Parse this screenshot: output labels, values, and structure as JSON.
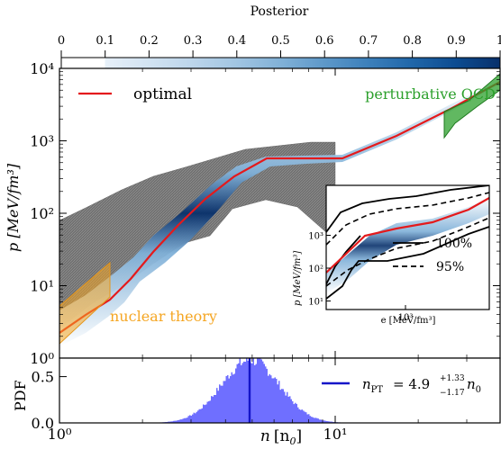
{
  "chart_data": [
    {
      "type": "colorbar",
      "title": "Posterior",
      "ticks": [
        "0",
        "0.1",
        "0.2",
        "0.3",
        "0.4",
        "0.5",
        "0.6",
        "0.7",
        "0.8",
        "0.9",
        "1"
      ],
      "range": [
        0,
        1
      ],
      "colors": [
        "#ffffff",
        "#e6eff8",
        "#d0e1f1",
        "#b9d2ea",
        "#9ec3e1",
        "#7fafd6",
        "#5b97c9",
        "#3b7fbb",
        "#1f65a8",
        "#0c4b8f",
        "#083068"
      ]
    },
    {
      "type": "area",
      "ylabel": "p [MeV/fm³]",
      "xlabel": "n [n₀]",
      "x_scale": "log",
      "y_scale": "log",
      "xlim": [
        1,
        40
      ],
      "ylim": [
        1,
        10000
      ],
      "x_ticks": [
        "10⁰",
        "10¹"
      ],
      "y_ticks": [
        "10⁰",
        "10¹",
        "10²",
        "10³",
        "10⁴"
      ],
      "legend": "top-left",
      "series": [
        {
          "name": "optimal",
          "color": "#e41a1c",
          "x": [
            1.0,
            1.5,
            1.8,
            2.5,
            3.5,
            4.9,
            10.0,
            20.0,
            40.0
          ],
          "y": [
            2.8,
            8.0,
            14.0,
            45.0,
            150.0,
            470.0,
            470.0,
            1400.0,
            3500.0
          ]
        },
        {
          "name": "perturbative QCD",
          "color": "#2ca02c",
          "x": [
            25.0,
            28.0,
            33.0,
            40.0
          ],
          "y": [
            1800.0,
            1200.0,
            1600.0,
            3600.0
          ]
        },
        {
          "name": "nuclear theory",
          "color": "#f5a623",
          "x": [
            1.0,
            1.5
          ],
          "y": [
            2.2,
            10.0
          ]
        },
        {
          "name": "100% envelope",
          "color": "#808080",
          "x": [
            1.0,
            2.0,
            4.0,
            8.0,
            10.0,
            40.0
          ],
          "y": [
            1.8,
            16.0,
            50.0,
            200.0,
            300.0,
            3500.0
          ]
        }
      ]
    },
    {
      "type": "line",
      "xlabel": "e [MeV/fm³]",
      "ylabel": "p [MeV/fm³]",
      "x_scale": "log",
      "y_scale": "log",
      "x_ticks": [
        "10³"
      ],
      "y_ticks": [
        "10⁰",
        "10¹",
        "10²",
        "10³"
      ],
      "legend": "bottom-right",
      "series": [
        {
          "name": "100%",
          "style": "solid",
          "color": "#000000"
        },
        {
          "name": "95%",
          "style": "dashed",
          "color": "#000000"
        },
        {
          "name": "optimal",
          "style": "solid",
          "color": "#e41a1c"
        }
      ]
    },
    {
      "type": "histogram",
      "ylabel": "PDF",
      "xlabel": "n [n₀]",
      "x_scale": "log",
      "ylim": [
        0,
        0.7
      ],
      "y_ticks": [
        "0.0",
        "0.5"
      ],
      "annotation": {
        "prefix": "n",
        "subscript": "PT",
        "value": "= 4.9",
        "sup": "+1.33",
        "sub": "−1.17",
        "unit": "n",
        "unit_sub": "0"
      },
      "median": 4.9,
      "color": "#6f6fff",
      "line_color": "#1515c8"
    }
  ],
  "labels": {
    "colorbar_title": "Posterior",
    "main_ylabel": "p [MeV/fm³]",
    "bottom_ylabel": "PDF",
    "xlabel_main": "n",
    "xlabel_unit": "[n",
    "xlabel_sub": "0",
    "xlabel_close": "]",
    "legend_optimal": "optimal",
    "label_pqcd": "perturbative QCD",
    "label_nuclear": "nuclear theory",
    "inset_ylabel": "p [MeV/fm³]",
    "inset_xlabel": "e [MeV/fm³]",
    "inset_legend_100": "100%",
    "inset_legend_95": "95%"
  }
}
